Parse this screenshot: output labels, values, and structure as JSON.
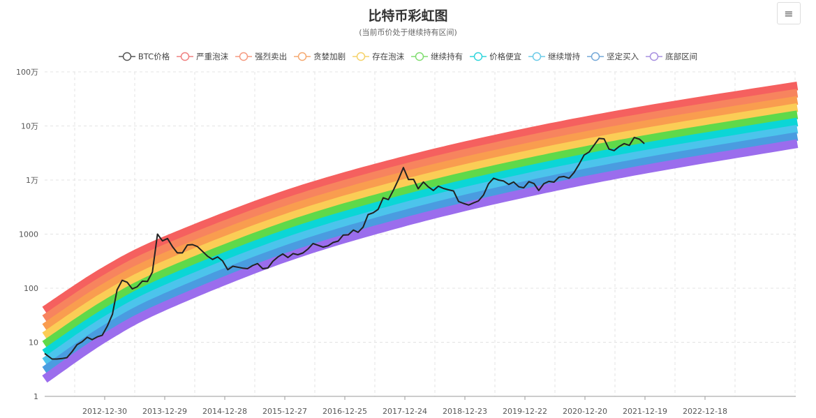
{
  "chart_data": {
    "type": "line",
    "title": "比特币彩虹图",
    "subtitle": "(当前币价处于继续持有区间)",
    "y_scale": "log",
    "ylim": [
      1,
      1000000
    ],
    "y_ticks": [
      {
        "v": 1,
        "label": "1"
      },
      {
        "v": 10,
        "label": "10"
      },
      {
        "v": 100,
        "label": "100"
      },
      {
        "v": 1000,
        "label": "1000"
      },
      {
        "v": 10000,
        "label": "1万"
      },
      {
        "v": 100000,
        "label": "10万"
      },
      {
        "v": 1000000,
        "label": "100万"
      }
    ],
    "xlim": [
      "2012-01-01",
      "2024-06-30"
    ],
    "x_ticks": [
      "2012-12-30",
      "2013-12-29",
      "2014-12-28",
      "2015-12-27",
      "2016-12-25",
      "2017-12-24",
      "2018-12-23",
      "2019-12-22",
      "2020-12-20",
      "2021-12-19",
      "2022-12-18"
    ],
    "grid": true,
    "legend_position": "top",
    "band_dates": [
      "2012-01-01",
      "2013-01-01",
      "2014-01-01",
      "2016-01-01",
      "2018-01-01",
      "2020-01-01",
      "2022-01-01",
      "2024-06-30"
    ],
    "series": [
      {
        "name": "BTC价格",
        "color": "#222222",
        "type": "price",
        "dates": [
          "2012-01",
          "2012-02",
          "2012-03",
          "2012-04",
          "2012-05",
          "2012-06",
          "2012-07",
          "2012-08",
          "2012-09",
          "2012-10",
          "2012-11",
          "2012-12",
          "2013-01",
          "2013-02",
          "2013-03",
          "2013-04",
          "2013-05",
          "2013-06",
          "2013-07",
          "2013-08",
          "2013-09",
          "2013-10",
          "2013-11",
          "2013-12",
          "2014-01",
          "2014-02",
          "2014-03",
          "2014-04",
          "2014-05",
          "2014-06",
          "2014-07",
          "2014-08",
          "2014-09",
          "2014-10",
          "2014-11",
          "2014-12",
          "2015-01",
          "2015-02",
          "2015-03",
          "2015-04",
          "2015-05",
          "2015-06",
          "2015-07",
          "2015-08",
          "2015-09",
          "2015-10",
          "2015-11",
          "2015-12",
          "2016-01",
          "2016-02",
          "2016-03",
          "2016-04",
          "2016-05",
          "2016-06",
          "2016-07",
          "2016-08",
          "2016-09",
          "2016-10",
          "2016-11",
          "2016-12",
          "2017-01",
          "2017-02",
          "2017-03",
          "2017-04",
          "2017-05",
          "2017-06",
          "2017-07",
          "2017-08",
          "2017-09",
          "2017-10",
          "2017-11",
          "2017-12",
          "2018-01",
          "2018-02",
          "2018-03",
          "2018-04",
          "2018-05",
          "2018-06",
          "2018-07",
          "2018-08",
          "2018-09",
          "2018-10",
          "2018-11",
          "2018-12",
          "2019-01",
          "2019-02",
          "2019-03",
          "2019-04",
          "2019-05",
          "2019-06",
          "2019-07",
          "2019-08",
          "2019-09",
          "2019-10",
          "2019-11",
          "2019-12",
          "2020-01",
          "2020-02",
          "2020-03",
          "2020-04",
          "2020-05",
          "2020-06",
          "2020-07",
          "2020-08",
          "2020-09",
          "2020-10",
          "2020-11",
          "2020-12",
          "2021-01",
          "2021-02",
          "2021-03",
          "2021-04",
          "2021-05",
          "2021-06",
          "2021-07",
          "2021-08",
          "2021-09",
          "2021-10",
          "2021-11",
          "2021-12"
        ],
        "values": [
          6.2,
          4.9,
          4.9,
          5.0,
          5.2,
          6.7,
          9.0,
          10.2,
          12.4,
          11.2,
          12.6,
          13.5,
          20,
          33,
          93,
          140,
          129,
          97,
          106,
          135,
          133,
          198,
          1000,
          750,
          830,
          580,
          450,
          450,
          630,
          640,
          590,
          480,
          390,
          340,
          380,
          320,
          220,
          255,
          245,
          235,
          230,
          263,
          285,
          230,
          236,
          314,
          378,
          430,
          370,
          437,
          416,
          448,
          530,
          670,
          624,
          575,
          609,
          700,
          742,
          960,
          970,
          1190,
          1080,
          1350,
          2300,
          2480,
          2870,
          4700,
          4340,
          6470,
          10200,
          17000,
          10200,
          10300,
          6900,
          9200,
          7500,
          6400,
          7700,
          7000,
          6600,
          6300,
          4000,
          3700,
          3450,
          3800,
          4100,
          5300,
          8500,
          10800,
          10000,
          9600,
          8300,
          9200,
          7500,
          7200,
          9350,
          8600,
          6400,
          8600,
          9450,
          9140,
          11300,
          11650,
          10800,
          13800,
          19700,
          29000,
          33100,
          45000,
          58800,
          57700,
          37300,
          35000,
          41600,
          47100,
          43800,
          61300,
          57000,
          47000
        ]
      },
      {
        "name": "严重泡沫",
        "color": "#f5605f",
        "legend_color": "#f08080",
        "values": [
          38.9,
          209,
          759,
          5370,
          23400,
          75900,
          199500,
          549500
        ]
      },
      {
        "name": "强烈卖出",
        "color": "#f7845e",
        "legend_color": "#f59a80",
        "values": [
          27.0,
          147,
          537,
          3840,
          16900,
          55100,
          145900,
          404600
        ]
      },
      {
        "name": "贪婪加剧",
        "color": "#f99d4f",
        "legend_color": "#f5a970",
        "values": [
          18.7,
          103,
          379,
          2750,
          12200,
          39900,
          106400,
          297200
        ]
      },
      {
        "name": "存在泡沫",
        "color": "#fbcd56",
        "legend_color": "#f5d26a",
        "values": [
          13.0,
          72,
          269,
          1960,
          8790,
          29000,
          77600,
          218800
        ]
      },
      {
        "name": "继续持有",
        "color": "#5fd94a",
        "legend_color": "#80dd70",
        "values": [
          9.0,
          50,
          190,
          1410,
          6340,
          21000,
          56800,
          161100
        ]
      },
      {
        "name": "价格便宜",
        "color": "#0bd6d6",
        "legend_color": "#30d5dc",
        "values": [
          6.25,
          35,
          134,
          1005,
          4560,
          15200,
          41400,
          118300
        ]
      },
      {
        "name": "继续增持",
        "color": "#4cc4ec",
        "legend_color": "#6ccbe8",
        "values": [
          4.34,
          24.8,
          95,
          718,
          3290,
          11100,
          30200,
          87100
        ]
      },
      {
        "name": "坚定买入",
        "color": "#4a9ce0",
        "legend_color": "#74a8d8",
        "values": [
          3.01,
          17.4,
          67,
          514,
          2370,
          8020,
          22100,
          64100
        ]
      },
      {
        "name": "底部区间",
        "color": "#9b6ded",
        "legend_color": "#a890e0",
        "values": [
          2.09,
          12.2,
          47.4,
          367,
          1710,
          5820,
          16100,
          47100
        ]
      }
    ]
  },
  "toolbar": {
    "menu_icon": "≡"
  }
}
